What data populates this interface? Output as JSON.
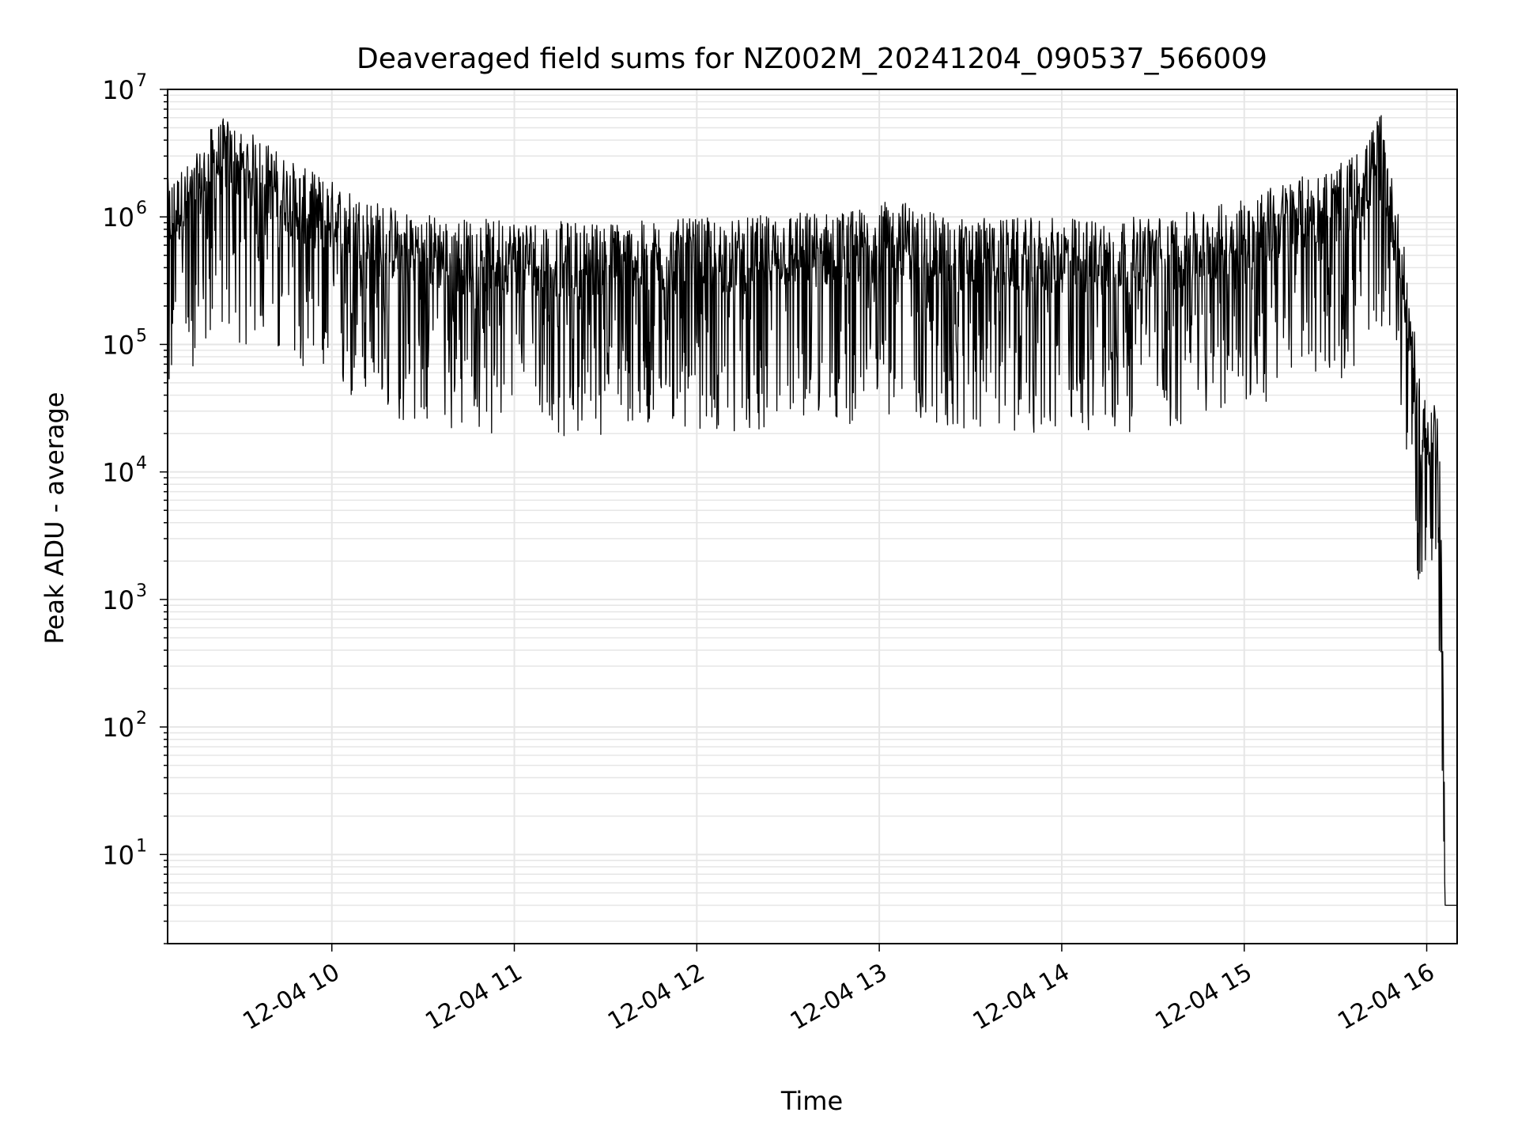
{
  "chart_data": {
    "type": "line",
    "title": "Deaveraged field sums for NZ002M_20241204_090537_566009",
    "xlabel": "Time",
    "ylabel": "Peak ADU - average",
    "yscale": "log",
    "grid": true,
    "line_color": "#000000",
    "grid_color": "#e6e6e6",
    "x_range": [
      "2024-12-04 09:06",
      "2024-12-04 16:10"
    ],
    "ylim": [
      2,
      10000000
    ],
    "x_ticks": [
      "12-04 10",
      "12-04 11",
      "12-04 12",
      "12-04 13",
      "12-04 14",
      "12-04 15",
      "12-04 16"
    ],
    "y_ticks": [
      {
        "base": "10",
        "exp": "1"
      },
      {
        "base": "10",
        "exp": "2"
      },
      {
        "base": "10",
        "exp": "3"
      },
      {
        "base": "10",
        "exp": "4"
      },
      {
        "base": "10",
        "exp": "5"
      },
      {
        "base": "10",
        "exp": "6"
      },
      {
        "base": "10",
        "exp": "7"
      }
    ],
    "series": [
      {
        "x": [
          "09:06",
          "09:15",
          "09:20",
          "09:25",
          "09:30",
          "09:35",
          "09:40",
          "09:45",
          "09:50",
          "09:55",
          "10:00",
          "10:10",
          "10:20",
          "10:30",
          "10:40",
          "10:50",
          "11:00",
          "11:15",
          "11:30",
          "11:45",
          "12:00",
          "12:15",
          "12:30",
          "12:45",
          "13:00",
          "13:05",
          "13:15",
          "13:30",
          "13:45",
          "14:00",
          "14:15",
          "14:30",
          "14:45",
          "15:00",
          "15:15",
          "15:30",
          "15:40",
          "15:45",
          "15:48",
          "15:52",
          "15:55",
          "15:58",
          "16:00",
          "16:02",
          "16:04",
          "16:05",
          "16:06",
          "16:10"
        ],
        "y": [
          800000,
          1200000,
          2000000,
          2500000,
          2000000,
          1800000,
          1500000,
          1200000,
          1000000,
          900000,
          800000,
          600000,
          500000,
          450000,
          400000,
          400000,
          400000,
          380000,
          380000,
          380000,
          400000,
          400000,
          450000,
          450000,
          500000,
          600000,
          450000,
          400000,
          400000,
          400000,
          400000,
          420000,
          450000,
          600000,
          800000,
          1000000,
          1500000,
          3000000,
          1000000,
          300000,
          80000,
          20000,
          15000,
          20000,
          10000,
          1000,
          4,
          4
        ]
      }
    ]
  }
}
